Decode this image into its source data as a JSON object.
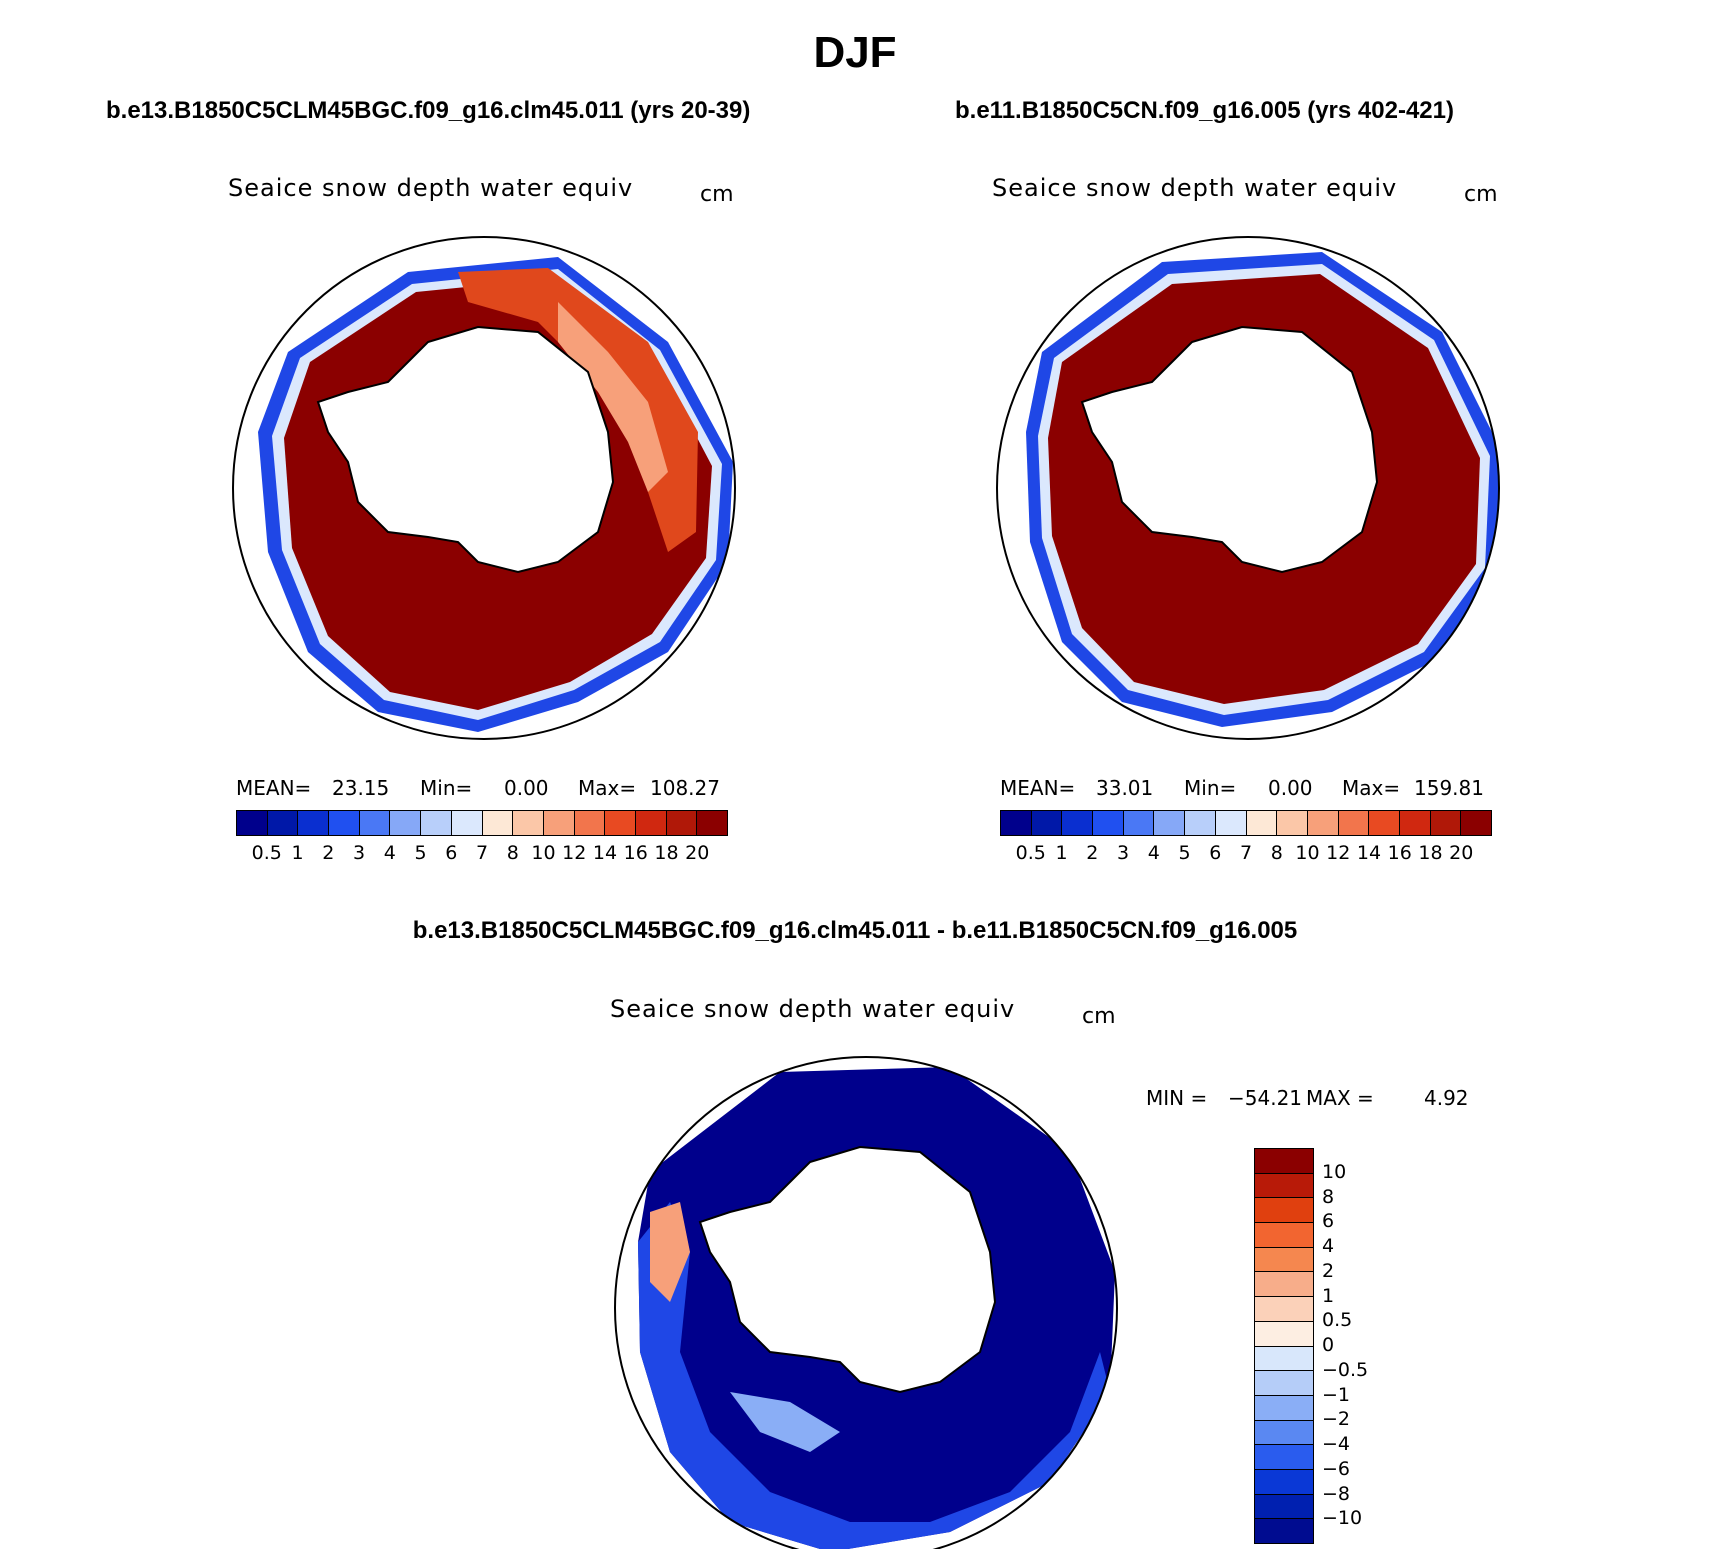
{
  "title": "DJF",
  "panels": [
    {
      "case_title": "b.e13.B1850C5CLM45BGC.f09_g16.clm45.011 (yrs 20-39)",
      "variable": "Seaice snow depth water equiv",
      "units": "cm",
      "stats": {
        "mean_label": "MEAN=",
        "mean": "23.15",
        "min_label": "Min=",
        "min": "0.00",
        "max_label": "Max=",
        "max": "108.27"
      }
    },
    {
      "case_title": "b.e11.B1850C5CN.f09_g16.005 (yrs 402-421)",
      "variable": "Seaice snow depth water equiv",
      "units": "cm",
      "stats": {
        "mean_label": "MEAN=",
        "mean": "33.01",
        "min_label": "Min=",
        "min": "0.00",
        "max_label": "Max=",
        "max": "159.81"
      }
    }
  ],
  "difference_panel": {
    "case_title": "b.e13.B1850C5CLM45BGC.f09_g16.clm45.011 - b.e11.B1850C5CN.f09_g16.005",
    "variable": "Seaice snow depth water equiv",
    "units": "cm",
    "min_label": "MIN =",
    "min": "−54.21",
    "max_label": "MAX =",
    "max": "4.92"
  },
  "colorbar_abs": {
    "labels": [
      "0.5",
      "1",
      "2",
      "3",
      "4",
      "5",
      "6",
      "7",
      "8",
      "10",
      "12",
      "14",
      "16",
      "18",
      "20"
    ],
    "colors": [
      "#00008c",
      "#0018a8",
      "#0a2fd0",
      "#2050f0",
      "#4a78f5",
      "#86a8f7",
      "#b8cffa",
      "#dbe8fd",
      "#fde8d6",
      "#fbc7a8",
      "#f7a07a",
      "#f2754c",
      "#e84a22",
      "#d02810",
      "#b01808",
      "#8b0000"
    ]
  },
  "colorbar_diff": {
    "labels": [
      "10",
      "8",
      "6",
      "4",
      "2",
      "1",
      "0.5",
      "0",
      "−0.5",
      "−1",
      "−2",
      "−4",
      "−6",
      "−8",
      "−10"
    ],
    "colors": [
      "#8b0000",
      "#b81a08",
      "#e0400f",
      "#f26530",
      "#f5874f",
      "#f7ad8a",
      "#fbd1b9",
      "#fdeee2",
      "#d8e7fb",
      "#b5cdf8",
      "#8aaef6",
      "#5a88f2",
      "#2a5cee",
      "#0a38d6",
      "#0020b0",
      "#000c90"
    ]
  },
  "map_colors": {
    "ocean": "#ffffff",
    "land": "#ffffff",
    "high": "#8b0000",
    "mid": "#e0481c",
    "light": "#f7a07a",
    "edge_blue": "#1f47e6",
    "deep_blue": "#00008c",
    "pale": "#dbe8fd"
  }
}
